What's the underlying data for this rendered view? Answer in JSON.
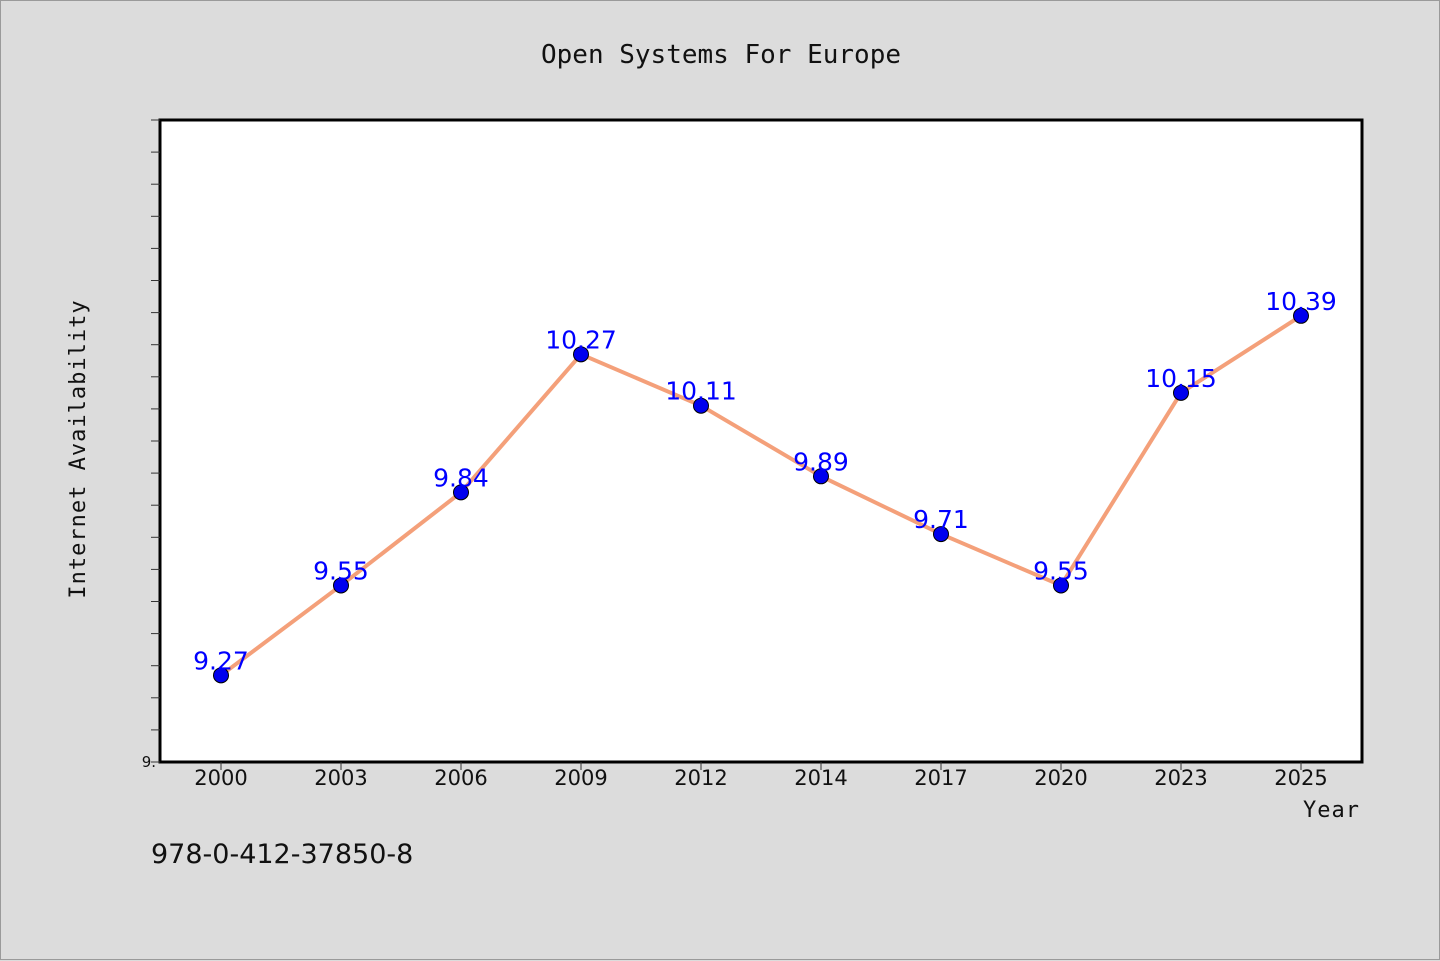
{
  "chart_data": {
    "type": "line",
    "title": "Open Systems For Europe",
    "xlabel": "Year",
    "ylabel": "Internet Availability",
    "categories": [
      "2000",
      "2003",
      "2006",
      "2009",
      "2012",
      "2014",
      "2017",
      "2020",
      "2023",
      "2025"
    ],
    "series": [
      {
        "values": [
          9.27,
          9.55,
          9.84,
          10.27,
          10.11,
          9.89,
          9.71,
          9.55,
          10.15,
          10.39
        ],
        "labels": [
          "9.27",
          "9.55",
          "9.84",
          "10.27",
          "10.11",
          "9.89",
          "9.71",
          "9.55",
          "10.15",
          "10.39"
        ],
        "line_color": "#f4a07a",
        "marker_color": "#0000ee",
        "label_color": "#0000ff"
      }
    ],
    "ylim": [
      9.0,
      11.0
    ],
    "ytick_labels": [
      "9."
    ],
    "grid": false,
    "legend": "none"
  },
  "footer": {
    "isbn": "978-0-412-37850-8"
  },
  "colors": {
    "background": "#dcdcdc",
    "plot_background": "#ffffff"
  }
}
